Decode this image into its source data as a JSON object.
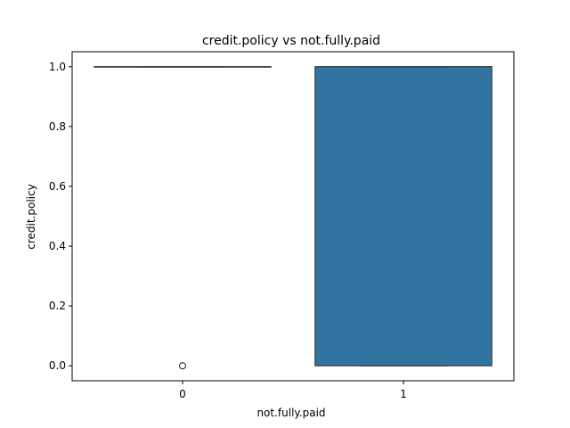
{
  "chart_data": {
    "type": "box",
    "title": "credit.policy vs not.fully.paid",
    "xlabel": "not.fully.paid",
    "ylabel": "credit.policy",
    "categories": [
      "0",
      "1"
    ],
    "ylim": [
      -0.05,
      1.05
    ],
    "yticks": [
      0.0,
      0.2,
      0.4,
      0.6,
      0.8,
      1.0
    ],
    "ytick_labels": [
      "0.0",
      "0.2",
      "0.4",
      "0.6",
      "0.8",
      "1.0"
    ],
    "boxes": [
      {
        "category": "0",
        "q1": 1.0,
        "median": 1.0,
        "q3": 1.0,
        "whisker_low": 1.0,
        "whisker_high": 1.0,
        "outliers": [
          0.0
        ]
      },
      {
        "category": "1",
        "q1": 0.0,
        "median": 1.0,
        "q3": 1.0,
        "whisker_low": 0.0,
        "whisker_high": 1.0,
        "outliers": []
      }
    ],
    "colors": {
      "box_fill": "#3274a1",
      "edge": "#3d3d3d"
    },
    "grid": false,
    "legend": "none"
  }
}
